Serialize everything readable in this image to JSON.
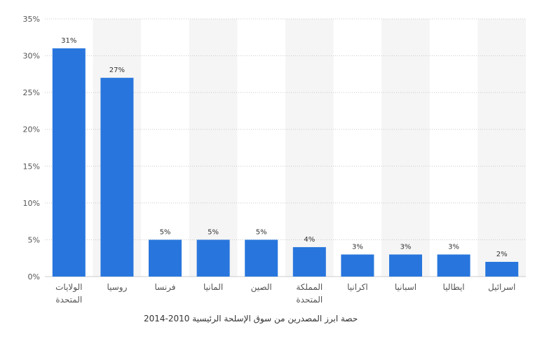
{
  "chart_data": {
    "type": "bar",
    "categories": [
      "الولايات المتحدة",
      "روسيا",
      "فرنسا",
      "المانيا",
      "الصين",
      "المملكة المتحدة",
      "اكرانيا",
      "اسبانيا",
      "ايطاليا",
      "اسرائيل"
    ],
    "category_lines": [
      [
        "الولايات",
        "المتحدة"
      ],
      [
        "روسيا"
      ],
      [
        "فرنسا"
      ],
      [
        "المانيا"
      ],
      [
        "الصين"
      ],
      [
        "المملكة",
        "المتحدة"
      ],
      [
        "اكرانيا"
      ],
      [
        "اسبانيا"
      ],
      [
        "ايطاليا"
      ],
      [
        "اسرائيل"
      ]
    ],
    "values": [
      31,
      27,
      5,
      5,
      5,
      4,
      3,
      3,
      3,
      2
    ],
    "value_labels": [
      "31%",
      "27%",
      "5%",
      "5%",
      "5%",
      "4%",
      "3%",
      "3%",
      "3%",
      "2%"
    ],
    "yticks": [
      "0%",
      "5%",
      "10%",
      "15%",
      "20%",
      "25%",
      "30%",
      "35%"
    ],
    "ylim": [
      0,
      35
    ],
    "grid": true,
    "bar_color": "#2876dd",
    "band_color": "#f5f5f5",
    "caption": "حصة ابرز المصدرين من سوق الإسلحة الرئيسية 2010-2014"
  }
}
